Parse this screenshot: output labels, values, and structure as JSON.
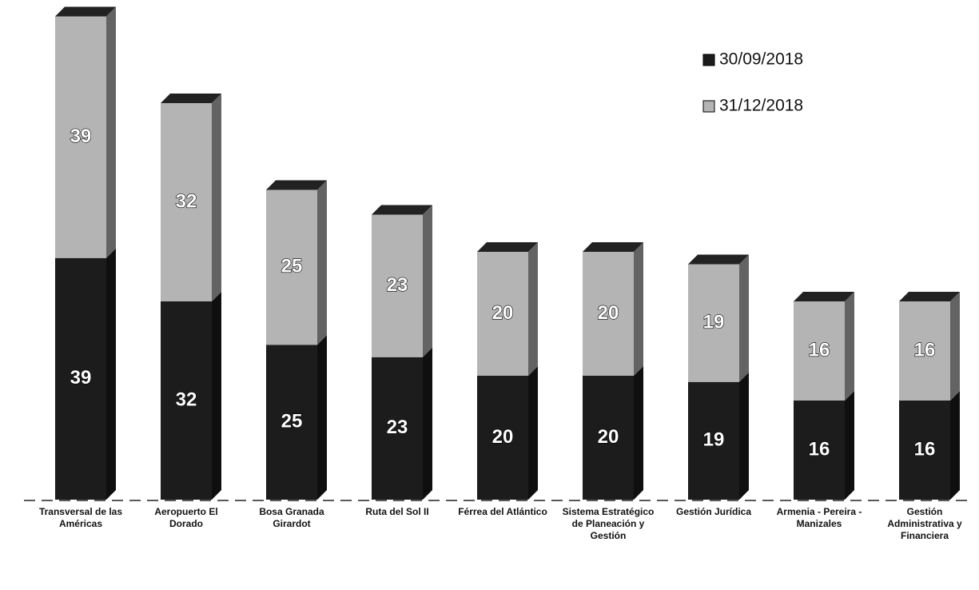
{
  "chart_data": {
    "type": "bar",
    "stacked": true,
    "categories": [
      "Transversal de las Américas",
      "Aeropuerto El Dorado",
      "Bosa Granada Girardot",
      "Ruta del Sol II",
      "Férrea del Atlántico",
      "Sistema Estratégico de Planeación y Gestión",
      "Gestión Jurídica",
      "Armenia - Pereira - Manizales",
      "Gestión Administrativa y Financiera"
    ],
    "series": [
      {
        "name": "30/09/2018",
        "color": "#1c1c1c",
        "values": [
          39,
          32,
          25,
          23,
          20,
          20,
          19,
          16,
          16
        ]
      },
      {
        "name": "31/12/2018",
        "color": "#b4b4b4",
        "values": [
          39,
          32,
          25,
          23,
          20,
          20,
          19,
          16,
          16
        ]
      }
    ],
    "ylim": [
      0,
      80
    ],
    "legend": "top-right"
  }
}
